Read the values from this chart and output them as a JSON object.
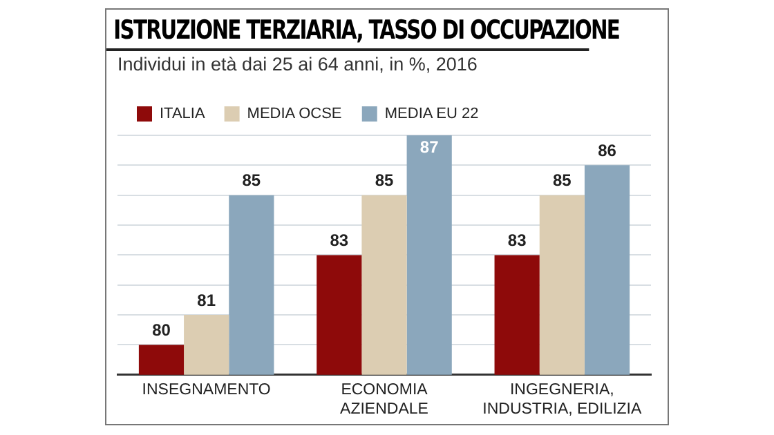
{
  "chart_data": {
    "type": "bar",
    "title": "ISTRUZIONE TERZIARIA, TASSO DI OCCUPAZIONE",
    "subtitle": "Individui in età dai 25 ai 64 anni, in %, 2016",
    "categories": [
      "INSEGNAMENTO",
      "ECONOMIA\nAZIENDALE",
      "INGEGNERIA,\nINDUSTRIA, EDILIZIA"
    ],
    "series": [
      {
        "name": "ITALIA",
        "color": "#8e0a0a",
        "values": [
          80,
          83,
          83
        ]
      },
      {
        "name": "MEDIA OCSE",
        "color": "#dccdb2",
        "values": [
          81,
          85,
          85
        ]
      },
      {
        "name": "MEDIA EU 22",
        "color": "#8ba7bc",
        "values": [
          85,
          87,
          86
        ]
      }
    ],
    "ylim": [
      79,
      87
    ],
    "yticks": [
      {
        "value": 80,
        "label": null
      },
      {
        "value": 81,
        "label": null
      },
      {
        "value": 82,
        "label": null
      },
      {
        "value": 83,
        "label": null
      },
      {
        "value": 84,
        "label": null
      },
      {
        "value": 85,
        "label": null
      },
      {
        "value": 86,
        "label": null
      },
      {
        "value": 87,
        "label": null
      }
    ],
    "tick_labels": "x",
    "grid": "y",
    "legend": "top left",
    "data_labels": true
  }
}
